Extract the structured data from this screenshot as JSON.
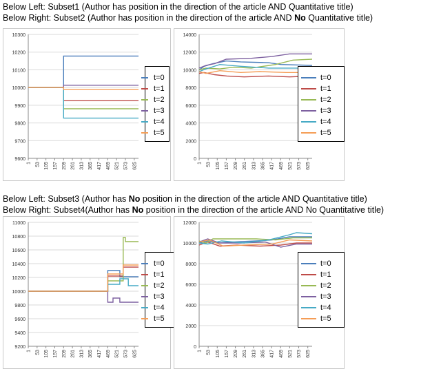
{
  "captions": [
    {
      "prefix": "Below Left: Subset1 (Author has position in the direction of the article  AND  Quantitative title)",
      "bold": "",
      "suffix": ""
    },
    {
      "prefix": "Below Right: Subset2 (Author has position in the direction of the article  AND  ",
      "bold": "No",
      "suffix": " Quantitative title)"
    },
    {
      "prefix": "Below Left: Subset3 (Author has ",
      "bold": "No",
      "suffix": " position in the direction of the article AND  Quantitative title)"
    },
    {
      "prefix": "Below Right: Subset4(Author has ",
      "bold": "No",
      "suffix": " position in the direction of the article AND  No Quantitative title)"
    }
  ],
  "colors": {
    "t=0": "#4a7ebb",
    "t=1": "#be4b48",
    "t=2": "#98b954",
    "t=3": "#7d60a0",
    "t=4": "#46aac5",
    "t=5": "#f59d56"
  },
  "chart_data": [
    {
      "type": "line",
      "x_ticks": [
        "1",
        "53",
        "105",
        "157",
        "209",
        "261",
        "313",
        "365",
        "417",
        "469",
        "521",
        "573",
        "625"
      ],
      "ylim": [
        9600,
        10300
      ],
      "y_ticks": [
        "9600",
        "9700",
        "9800",
        "9900",
        "10000",
        "10100",
        "10200",
        "10300"
      ],
      "legend": [
        "t=0",
        "t=1",
        "t=2",
        "t=3",
        "t=4",
        "t=5"
      ],
      "grid": "horizontal",
      "series": [
        {
          "name": "t=0",
          "points": [
            [
              1,
              10000
            ],
            [
              209,
              10000
            ],
            [
              209,
              10178
            ],
            [
              650,
              10178
            ]
          ]
        },
        {
          "name": "t=1",
          "points": [
            [
              1,
              10000
            ],
            [
              209,
              10000
            ],
            [
              209,
              9926
            ],
            [
              650,
              9926
            ]
          ]
        },
        {
          "name": "t=2",
          "points": [
            [
              1,
              10000
            ],
            [
              209,
              10000
            ],
            [
              209,
              9880
            ],
            [
              650,
              9880
            ]
          ]
        },
        {
          "name": "t=3",
          "points": [
            [
              1,
              10000
            ],
            [
              209,
              10000
            ],
            [
              209,
              10013
            ],
            [
              650,
              10013
            ]
          ]
        },
        {
          "name": "t=4",
          "points": [
            [
              1,
              10000
            ],
            [
              209,
              10000
            ],
            [
              209,
              9827
            ],
            [
              650,
              9827
            ]
          ]
        },
        {
          "name": "t=5",
          "points": [
            [
              1,
              10000
            ],
            [
              209,
              10000
            ],
            [
              209,
              9990
            ],
            [
              650,
              9990
            ]
          ]
        }
      ]
    },
    {
      "type": "line",
      "x_ticks": [
        "1",
        "53",
        "105",
        "157",
        "209",
        "261",
        "313",
        "365",
        "417",
        "469",
        "521",
        "573",
        "625"
      ],
      "ylim": [
        0,
        14000
      ],
      "y_ticks": [
        "0",
        "2000",
        "4000",
        "6000",
        "8000",
        "10000",
        "12000",
        "14000"
      ],
      "legend": [
        "t=0",
        "t=1",
        "t=2",
        "t=3",
        "t=4",
        "t=5"
      ],
      "grid": "horizontal",
      "series": [
        {
          "name": "t=0",
          "points": [
            [
              1,
              10000
            ],
            [
              30,
              10400
            ],
            [
              80,
              10700
            ],
            [
              157,
              11000
            ],
            [
              240,
              10900
            ],
            [
              400,
              10800
            ],
            [
              470,
              10600
            ],
            [
              650,
              10500
            ]
          ]
        },
        {
          "name": "t=1",
          "points": [
            [
              1,
              9600
            ],
            [
              30,
              9700
            ],
            [
              90,
              9450
            ],
            [
              160,
              9300
            ],
            [
              260,
              9200
            ],
            [
              400,
              9300
            ],
            [
              520,
              9200
            ],
            [
              650,
              9300
            ]
          ]
        },
        {
          "name": "t=2",
          "points": [
            [
              1,
              10000
            ],
            [
              40,
              10200
            ],
            [
              120,
              10100
            ],
            [
              200,
              10300
            ],
            [
              300,
              10200
            ],
            [
              440,
              10600
            ],
            [
              540,
              11100
            ],
            [
              650,
              11200
            ]
          ]
        },
        {
          "name": "t=3",
          "points": [
            [
              1,
              10200
            ],
            [
              40,
              10500
            ],
            [
              90,
              10700
            ],
            [
              157,
              11200
            ],
            [
              300,
              11300
            ],
            [
              420,
              11500
            ],
            [
              520,
              11800
            ],
            [
              650,
              11800
            ]
          ]
        },
        {
          "name": "t=4",
          "points": [
            [
              1,
              9800
            ],
            [
              40,
              10100
            ],
            [
              120,
              10600
            ],
            [
              240,
              10400
            ],
            [
              400,
              10200
            ],
            [
              500,
              10200
            ],
            [
              650,
              10200
            ]
          ]
        },
        {
          "name": "t=5",
          "points": [
            [
              1,
              9800
            ],
            [
              40,
              9600
            ],
            [
              120,
              9900
            ],
            [
              240,
              9700
            ],
            [
              350,
              9800
            ],
            [
              500,
              9700
            ],
            [
              650,
              9700
            ]
          ]
        }
      ]
    },
    {
      "type": "line",
      "x_ticks": [
        "1",
        "53",
        "105",
        "157",
        "209",
        "261",
        "313",
        "365",
        "417",
        "469",
        "521",
        "573",
        "625"
      ],
      "ylim": [
        9200,
        11000
      ],
      "y_ticks": [
        "9200",
        "9400",
        "9600",
        "9800",
        "10000",
        "10200",
        "10400",
        "10600",
        "10800",
        "11000"
      ],
      "legend": [
        "t=0",
        "t=1",
        "t=2",
        "t=3",
        "t=4",
        "t=5"
      ],
      "grid": "horizontal",
      "series": [
        {
          "name": "t=0",
          "points": [
            [
              1,
              10000
            ],
            [
              469,
              10000
            ],
            [
              469,
              10300
            ],
            [
              540,
              10300
            ],
            [
              540,
              10210
            ],
            [
              650,
              10210
            ]
          ]
        },
        {
          "name": "t=1",
          "points": [
            [
              1,
              10000
            ],
            [
              469,
              10000
            ],
            [
              469,
              10220
            ],
            [
              560,
              10220
            ],
            [
              560,
              10350
            ],
            [
              650,
              10350
            ]
          ]
        },
        {
          "name": "t=2",
          "points": [
            [
              1,
              10000
            ],
            [
              469,
              10000
            ],
            [
              469,
              10150
            ],
            [
              560,
              10150
            ],
            [
              560,
              10780
            ],
            [
              573,
              10780
            ],
            [
              573,
              10720
            ],
            [
              650,
              10720
            ]
          ]
        },
        {
          "name": "t=3",
          "points": [
            [
              1,
              10000
            ],
            [
              469,
              10000
            ],
            [
              469,
              9840
            ],
            [
              500,
              9840
            ],
            [
              500,
              9900
            ],
            [
              540,
              9900
            ],
            [
              540,
              9840
            ],
            [
              650,
              9840
            ]
          ]
        },
        {
          "name": "t=4",
          "points": [
            [
              1,
              10000
            ],
            [
              469,
              10000
            ],
            [
              469,
              10100
            ],
            [
              540,
              10100
            ],
            [
              540,
              10180
            ],
            [
              590,
              10180
            ],
            [
              590,
              10080
            ],
            [
              650,
              10080
            ]
          ]
        },
        {
          "name": "t=5",
          "points": [
            [
              1,
              10000
            ],
            [
              469,
              10000
            ],
            [
              469,
              10250
            ],
            [
              560,
              10250
            ],
            [
              560,
              10380
            ],
            [
              650,
              10380
            ]
          ]
        }
      ]
    },
    {
      "type": "line",
      "x_ticks": [
        "1",
        "53",
        "105",
        "157",
        "209",
        "261",
        "313",
        "365",
        "417",
        "469",
        "521",
        "573",
        "625"
      ],
      "ylim": [
        0,
        12000
      ],
      "y_ticks": [
        "0",
        "2000",
        "4000",
        "6000",
        "8000",
        "10000",
        "12000"
      ],
      "legend": [
        "t=0",
        "t=1",
        "t=2",
        "t=3",
        "t=4",
        "t=5"
      ],
      "grid": "horizontal",
      "series": [
        {
          "name": "t=0",
          "points": [
            [
              1,
              10000
            ],
            [
              50,
              10200
            ],
            [
              110,
              10000
            ],
            [
              200,
              10100
            ],
            [
              330,
              10200
            ],
            [
              420,
              10300
            ],
            [
              520,
              10600
            ],
            [
              650,
              10600
            ]
          ]
        },
        {
          "name": "t=1",
          "points": [
            [
              1,
              9800
            ],
            [
              50,
              10100
            ],
            [
              120,
              9700
            ],
            [
              220,
              9800
            ],
            [
              350,
              9700
            ],
            [
              470,
              9800
            ],
            [
              560,
              10000
            ],
            [
              650,
              10000
            ]
          ]
        },
        {
          "name": "t=2",
          "points": [
            [
              1,
              10200
            ],
            [
              40,
              10000
            ],
            [
              80,
              10400
            ],
            [
              200,
              10400
            ],
            [
              330,
              10400
            ],
            [
              440,
              10300
            ],
            [
              540,
              10500
            ],
            [
              650,
              10500
            ]
          ]
        },
        {
          "name": "t=3",
          "points": [
            [
              1,
              10100
            ],
            [
              50,
              10400
            ],
            [
              120,
              10000
            ],
            [
              240,
              10000
            ],
            [
              380,
              10100
            ],
            [
              470,
              9600
            ],
            [
              560,
              9900
            ],
            [
              650,
              9900
            ]
          ]
        },
        {
          "name": "t=4",
          "points": [
            [
              1,
              10000
            ],
            [
              50,
              9900
            ],
            [
              130,
              10200
            ],
            [
              260,
              10000
            ],
            [
              400,
              10300
            ],
            [
              520,
              10800
            ],
            [
              560,
              11000
            ],
            [
              650,
              10900
            ]
          ]
        },
        {
          "name": "t=5",
          "points": [
            [
              1,
              10100
            ],
            [
              60,
              10300
            ],
            [
              140,
              9700
            ],
            [
              260,
              9800
            ],
            [
              420,
              9900
            ],
            [
              520,
              10300
            ],
            [
              650,
              10200
            ]
          ]
        }
      ]
    }
  ]
}
